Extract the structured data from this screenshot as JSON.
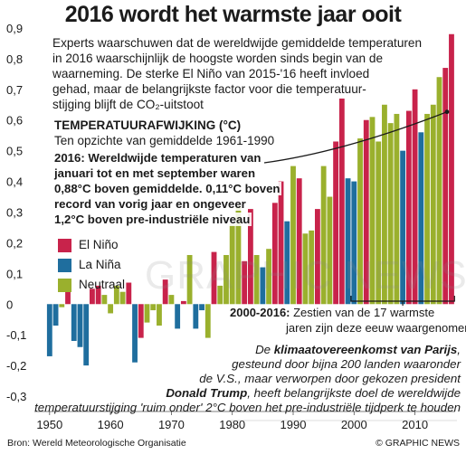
{
  "title": "2016 wordt het warmste jaar ooit",
  "intro_lines": [
    "Experts waarschuwen dat de wereldwijde gemiddelde temperaturen",
    "in 2016 waarschijnlijk de hoogste worden sinds begin van de",
    "waarneming. De sterke El Niño van 2015-'16 heeft invloed",
    "gehad, maar de belangrijkste factor voor die temperatuur-",
    "stijging blijft de CO₂-uitstoot"
  ],
  "section_title": "TEMPERATUURAFWIJKING (°C)",
  "section_subtitle": "Ten opzichte van gemiddelde 1961-1990",
  "highlight_lines": [
    "2016: Wereldwijde temperaturen van",
    "januari tot en met september waren",
    "0,88°C boven gemiddelde. 0,11°C boven",
    "record van vorig jaar en ongeveer",
    "1,2°C boven pre-industriële niveau"
  ],
  "legend": [
    {
      "label": "El Niño",
      "color": "#c8234b"
    },
    {
      "label": "La Niña",
      "color": "#1f6e9e"
    },
    {
      "label": "Neutraal",
      "color": "#9ab02d"
    }
  ],
  "warmest_note": {
    "bold": "2000-2016:",
    "rest": " Zestien van de 17 warmste",
    "line2": "jaren zijn deze eeuw waargenomen"
  },
  "paris_lines": [
    [
      {
        "t": "De ",
        "b": false
      },
      {
        "t": "klimaatovereenkomst van Parijs",
        "b": true
      },
      {
        "t": ",",
        "b": false
      }
    ],
    [
      {
        "t": "gesteund door bijna 200 landen waaronder",
        "b": false
      }
    ],
    [
      {
        "t": "de V.S., maar verworpen door gekozen president",
        "b": false
      }
    ],
    [
      {
        "t": "Donald Trump",
        "b": true
      },
      {
        "t": ", heeft belangrijkste doel de wereldwijde",
        "b": false
      }
    ],
    [
      {
        "t": "temperatuurstijging 'ruim onder' 2°C boven het pre-industriële tijdperk te houden",
        "b": false
      }
    ]
  ],
  "source": "Bron: Wereld Meteorologische Organisatie",
  "credit": "© GRAPHIC NEWS",
  "watermark": "GRAPHIC NEWS",
  "chart_data": {
    "type": "bar",
    "x_ticks": [
      "1950",
      "1960",
      "1970",
      "1980",
      "1990",
      "2000",
      "2010"
    ],
    "y_ticks": [
      "0,9",
      "0,8",
      "0,7",
      "0,6",
      "0,5",
      "0,4",
      "0,3",
      "0,2",
      "0,1",
      "0",
      "-0,1",
      "-0,2",
      "-0,3"
    ],
    "ylim": [
      -0.35,
      0.95
    ],
    "xlim": [
      1947.5,
      2016.6
    ],
    "colors": {
      "el_nino": "#c8234b",
      "la_nina": "#1f6e9e",
      "neutral": "#9ab02d"
    },
    "years": [
      1950,
      1951,
      1952,
      1953,
      1954,
      1955,
      1956,
      1957,
      1958,
      1959,
      1960,
      1961,
      1962,
      1963,
      1964,
      1965,
      1966,
      1967,
      1968,
      1969,
      1970,
      1971,
      1972,
      1973,
      1974,
      1975,
      1976,
      1977,
      1978,
      1979,
      1980,
      1981,
      1982,
      1983,
      1984,
      1985,
      1986,
      1987,
      1988,
      1989,
      1990,
      1991,
      1992,
      1993,
      1994,
      1995,
      1996,
      1997,
      1998,
      1999,
      2000,
      2001,
      2002,
      2003,
      2004,
      2005,
      2006,
      2007,
      2008,
      2009,
      2010,
      2011,
      2012,
      2013,
      2014,
      2015,
      2016
    ],
    "values": [
      -0.17,
      -0.07,
      -0.01,
      0.08,
      -0.12,
      -0.14,
      -0.2,
      0.05,
      0.06,
      0.03,
      -0.03,
      0.06,
      0.04,
      0.07,
      -0.19,
      -0.11,
      -0.06,
      -0.02,
      -0.07,
      0.08,
      0.03,
      -0.08,
      0.01,
      0.16,
      -0.08,
      -0.02,
      -0.11,
      0.17,
      0.06,
      0.16,
      0.26,
      0.32,
      0.14,
      0.31,
      0.16,
      0.12,
      0.18,
      0.33,
      0.4,
      0.27,
      0.45,
      0.41,
      0.23,
      0.24,
      0.31,
      0.45,
      0.35,
      0.53,
      0.67,
      0.41,
      0.4,
      0.54,
      0.6,
      0.61,
      0.53,
      0.65,
      0.59,
      0.62,
      0.5,
      0.63,
      0.7,
      0.56,
      0.62,
      0.65,
      0.74,
      0.77,
      0.88
    ],
    "phase": [
      "la_nina",
      "la_nina",
      "neutral",
      "el_nino",
      "la_nina",
      "la_nina",
      "la_nina",
      "el_nino",
      "el_nino",
      "neutral",
      "neutral",
      "neutral",
      "neutral",
      "el_nino",
      "la_nina",
      "el_nino",
      "neutral",
      "neutral",
      "neutral",
      "el_nino",
      "neutral",
      "la_nina",
      "el_nino",
      "neutral",
      "la_nina",
      "la_nina",
      "neutral",
      "el_nino",
      "neutral",
      "neutral",
      "neutral",
      "neutral",
      "el_nino",
      "el_nino",
      "neutral",
      "la_nina",
      "neutral",
      "el_nino",
      "el_nino",
      "la_nina",
      "neutral",
      "el_nino",
      "neutral",
      "neutral",
      "el_nino",
      "neutral",
      "neutral",
      "el_nino",
      "el_nino",
      "la_nina",
      "la_nina",
      "neutral",
      "el_nino",
      "neutral",
      "neutral",
      "neutral",
      "neutral",
      "neutral",
      "la_nina",
      "el_nino",
      "el_nino",
      "la_nina",
      "neutral",
      "neutral",
      "neutral",
      "el_nino",
      "el_nino"
    ],
    "grid": false,
    "legend_position": "left"
  }
}
